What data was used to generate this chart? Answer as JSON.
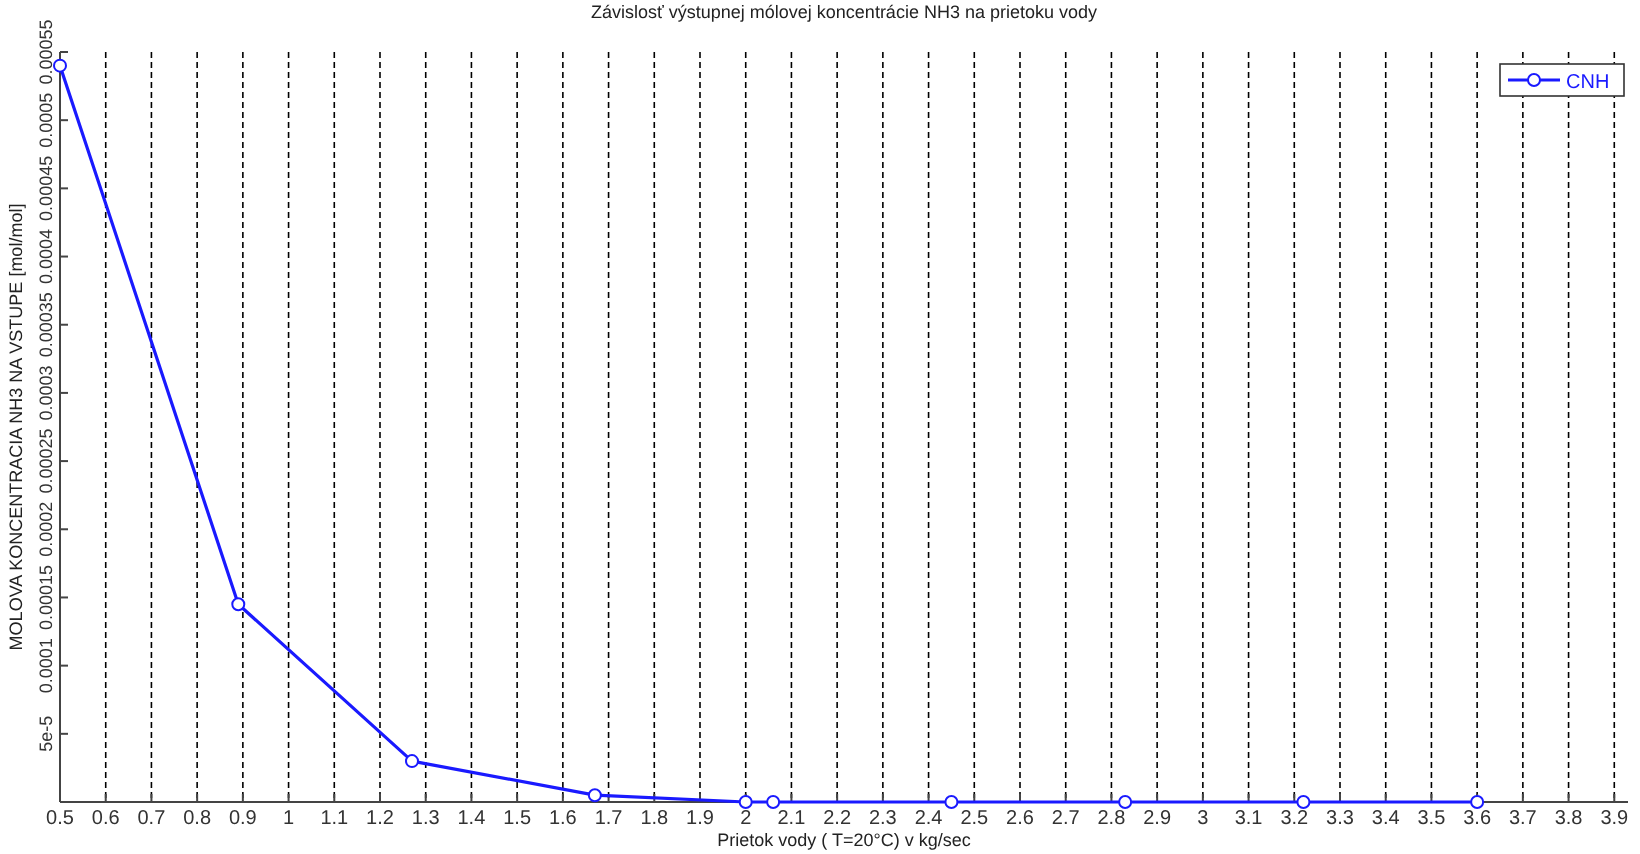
{
  "chart_data": {
    "type": "line",
    "title": "Závislosť výstupnej mólovej koncentrácie NH3 na prietoku vody",
    "xlabel": "Prietok vody ( T=20°C) v kg/sec",
    "ylabel": "MOLOVA KONCENTRACIA NH3 NA VSTUPE [mol/mol]",
    "x": [
      0.5,
      0.89,
      1.27,
      1.67,
      2.0,
      2.06,
      2.45,
      2.83,
      3.22,
      3.6
    ],
    "series": [
      {
        "name": "CNH",
        "color": "#1a1aff",
        "values": [
          0.00054,
          0.000145,
          3e-05,
          5e-06,
          0,
          0,
          0,
          0,
          0,
          0
        ]
      }
    ],
    "xlim": [
      0.5,
      3.93
    ],
    "xticks": [
      0.5,
      0.6,
      0.7,
      0.8,
      0.9,
      1,
      1.1,
      1.2,
      1.3,
      1.4,
      1.5,
      1.6,
      1.7,
      1.8,
      1.9,
      2,
      2.1,
      2.2,
      2.3,
      2.4,
      2.5,
      2.6,
      2.7,
      2.8,
      2.9,
      3,
      3.1,
      3.2,
      3.3,
      3.4,
      3.5,
      3.6,
      3.7,
      3.8,
      3.9
    ],
    "ylim": [
      0,
      0.00055
    ],
    "yticks": [
      {
        "value": 5e-05,
        "label": "5e-5"
      },
      0.0001,
      0.00015,
      0.0002,
      0.00025,
      0.0003,
      0.00035,
      0.0004,
      0.00045,
      0.0005,
      0.00055
    ],
    "grid": "x",
    "legend": "top right",
    "marker": "circle",
    "line_style": "solid"
  }
}
